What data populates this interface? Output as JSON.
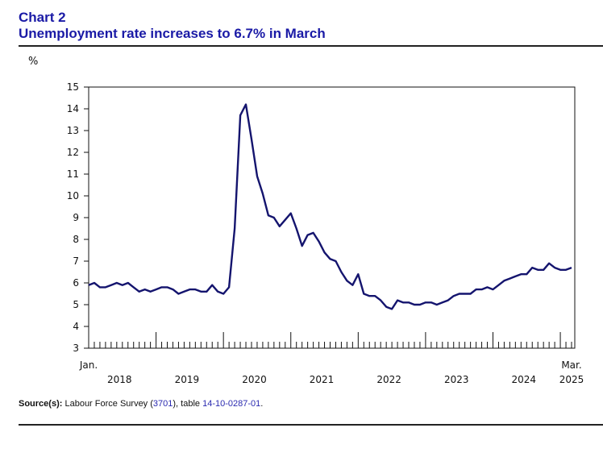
{
  "header": {
    "chart_label": "Chart 2",
    "title": "Unemployment rate increases to 6.7% in March"
  },
  "source": {
    "label": "Source(s):",
    "text1": "Labour Force Survey (",
    "survey_id": "3701",
    "text2": "), table ",
    "table_id": "14-10-0287-01",
    "text3": "."
  },
  "colors": {
    "title": "#1a1aa6",
    "series": "#14146e",
    "link": "#2a2ab0"
  },
  "chart_data": {
    "type": "line",
    "title": "Unemployment rate increases to 6.7% in March",
    "ylabel": "%",
    "ylim": [
      3,
      15
    ],
    "yticks": [
      3,
      4,
      5,
      6,
      7,
      8,
      9,
      10,
      11,
      12,
      13,
      14,
      15
    ],
    "grid": false,
    "start_label": "Jan.",
    "end_label": "Mar.",
    "year_labels": [
      "2018",
      "2019",
      "2020",
      "2021",
      "2022",
      "2023",
      "2024",
      "2025"
    ],
    "series": [
      {
        "values": [
          5.9,
          6.0,
          5.8,
          5.8,
          5.9,
          6.0,
          5.9,
          6.0,
          5.8,
          5.6,
          5.7,
          5.6,
          5.7,
          5.8,
          5.8,
          5.7,
          5.5,
          5.6,
          5.7,
          5.7,
          5.6,
          5.6,
          5.9,
          5.6,
          5.5,
          5.8,
          8.5,
          13.7,
          14.2,
          12.6,
          10.9,
          10.1,
          9.1,
          9.0,
          8.6,
          8.9,
          9.2,
          8.5,
          7.7,
          8.2,
          8.3,
          7.9,
          7.4,
          7.1,
          7.0,
          6.5,
          6.1,
          5.9,
          6.4,
          5.5,
          5.4,
          5.4,
          5.2,
          4.9,
          4.8,
          5.2,
          5.1,
          5.1,
          5.0,
          5.0,
          5.1,
          5.1,
          5.0,
          5.1,
          5.2,
          5.4,
          5.5,
          5.5,
          5.5,
          5.7,
          5.7,
          5.8,
          5.7,
          5.9,
          6.1,
          6.2,
          6.3,
          6.4,
          6.4,
          6.7,
          6.6,
          6.6,
          6.9,
          6.7,
          6.6,
          6.6,
          6.7
        ]
      }
    ]
  }
}
